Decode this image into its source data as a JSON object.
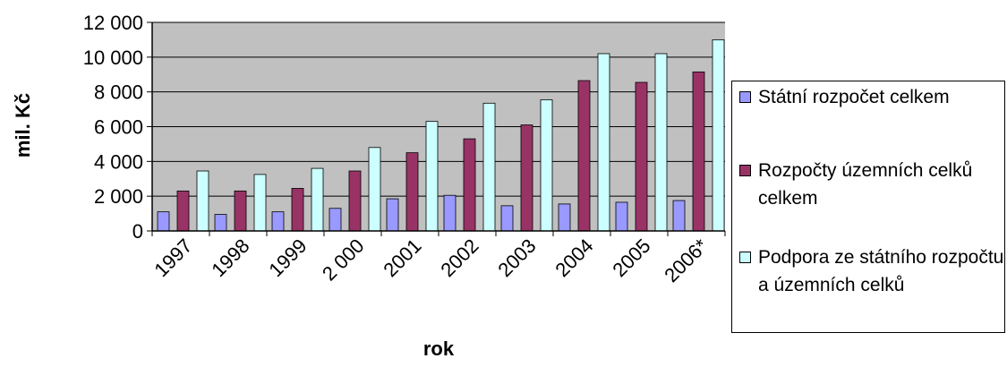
{
  "chart_data": {
    "type": "bar",
    "xlabel": "rok",
    "ylabel": "mil. Kč",
    "categories": [
      "1997",
      "1998",
      "1999",
      "2 000",
      "2001",
      "2002",
      "2003",
      "2004",
      "2005",
      "2006*"
    ],
    "ylim": [
      0,
      12000
    ],
    "yticks": [
      0,
      2000,
      4000,
      6000,
      8000,
      10000,
      12000
    ],
    "ytick_labels": [
      "0",
      "2 000",
      "4 000",
      "6 000",
      "8 000",
      "10 000",
      "12 000"
    ],
    "grid": true,
    "legend_position": "right",
    "series": [
      {
        "name": "Státní rozpočet celkem",
        "color": "#9999ff",
        "values": [
          1100,
          950,
          1100,
          1300,
          1850,
          2050,
          1450,
          1550,
          1650,
          1750
        ]
      },
      {
        "name": "Rozpočty územních celků celkem",
        "color": "#993366",
        "values": [
          2300,
          2300,
          2450,
          3450,
          4500,
          5300,
          6100,
          8650,
          8550,
          9150
        ]
      },
      {
        "name": "Podpora ze  státního rozpočtu a územních celků",
        "color": "#ccffff",
        "values": [
          3450,
          3250,
          3600,
          4800,
          6300,
          7350,
          7550,
          10200,
          10200,
          11000
        ]
      }
    ],
    "plot_background": "#c0c0c0"
  }
}
